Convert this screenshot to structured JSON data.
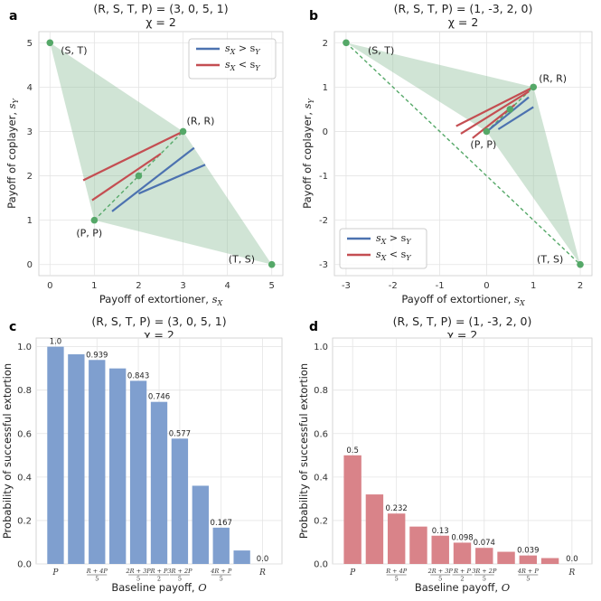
{
  "chart_data": [
    {
      "panel": "a",
      "type": "line",
      "title_line1": "(R, S, T, P) = (3, 0, 5, 1)",
      "title_line2": "χ = 2",
      "xlabel": "Payoff of extortioner, s",
      "xlabel_sub": "X",
      "ylabel": "Payoff of coplayer, s",
      "ylabel_sub": "Y",
      "xlim": [
        -0.25,
        5.25
      ],
      "ylim": [
        -0.25,
        5.25
      ],
      "xticks": [
        0,
        1,
        2,
        3,
        4,
        5
      ],
      "yticks": [
        0,
        1,
        2,
        3,
        4,
        5
      ],
      "feasible_region": [
        [
          0,
          5
        ],
        [
          3,
          3
        ],
        [
          5,
          0
        ],
        [
          1,
          1
        ]
      ],
      "points": [
        {
          "label": "(S, T)",
          "x": 0,
          "y": 5
        },
        {
          "label": "(R, R)",
          "x": 3,
          "y": 3
        },
        {
          "label": "(P, P)",
          "x": 1,
          "y": 1
        },
        {
          "label": "(T, S)",
          "x": 5,
          "y": 0
        },
        {
          "label": "",
          "x": 2,
          "y": 2
        }
      ],
      "diagonal": [
        [
          1,
          1
        ],
        [
          3,
          3
        ]
      ],
      "series": [
        {
          "name": "s_X > s_Y",
          "legend_main": "s",
          "legend_a": "X",
          "legend_op": " > s",
          "legend_b": "Y",
          "color": "#4c72b0",
          "segments": [
            [
              [
                1.4,
                1.2
              ],
              [
                3.25,
                2.63
              ]
            ],
            [
              [
                2.0,
                1.6
              ],
              [
                3.5,
                2.25
              ]
            ]
          ]
        },
        {
          "name": "s_X < s_Y",
          "legend_main": "s",
          "legend_a": "X",
          "legend_op": " < s",
          "legend_b": "Y",
          "color": "#c44e52",
          "segments": [
            [
              [
                0.75,
                1.9
              ],
              [
                3.0,
                3.0
              ]
            ],
            [
              [
                0.95,
                1.45
              ],
              [
                2.5,
                2.5
              ]
            ]
          ]
        }
      ],
      "legend_position": "top-right"
    },
    {
      "panel": "b",
      "type": "line",
      "title_line1": "(R, S, T, P) = (1, -3, 2, 0)",
      "title_line2": "χ = 2",
      "xlabel": "Payoff of extortioner, s",
      "xlabel_sub": "X",
      "ylabel": "Payoff of coplayer, s",
      "ylabel_sub": "Y",
      "xlim": [
        -3.25,
        2.25
      ],
      "ylim": [
        -3.25,
        2.25
      ],
      "xticks": [
        -3,
        -2,
        -1,
        0,
        1,
        2
      ],
      "yticks": [
        -3,
        -2,
        -1,
        0,
        1,
        2
      ],
      "feasible_region": [
        [
          -3,
          2
        ],
        [
          1,
          1
        ],
        [
          2,
          -3
        ],
        [
          0,
          0
        ]
      ],
      "points": [
        {
          "label": "(S, T)",
          "x": -3,
          "y": 2
        },
        {
          "label": "(R, R)",
          "x": 1,
          "y": 1
        },
        {
          "label": "(P, P)",
          "x": 0,
          "y": 0
        },
        {
          "label": "(T, S)",
          "x": 2,
          "y": -3
        },
        {
          "label": "",
          "x": 0.5,
          "y": 0.5
        }
      ],
      "diagonal": [
        [
          0,
          0
        ],
        [
          1,
          1
        ]
      ],
      "dashed_line": [
        [
          -3,
          2
        ],
        [
          2,
          -3
        ]
      ],
      "series": [
        {
          "name": "s_X > s_Y",
          "legend_main": "s",
          "legend_a": "X",
          "legend_op": " > s",
          "legend_b": "Y",
          "color": "#4c72b0",
          "segments": [
            [
              [
                -0.05,
                -0.05
              ],
              [
                0.9,
                0.77
              ]
            ],
            [
              [
                0.25,
                0.05
              ],
              [
                1.0,
                0.55
              ]
            ]
          ]
        },
        {
          "name": "s_X < s_Y",
          "legend_main": "s",
          "legend_a": "X",
          "legend_op": " < s",
          "legend_b": "Y",
          "color": "#c44e52",
          "segments": [
            [
              [
                -0.65,
                0.12
              ],
              [
                1.0,
                1.0
              ]
            ],
            [
              [
                -0.55,
                -0.05
              ],
              [
                0.9,
                0.9
              ]
            ],
            [
              [
                -0.3,
                -0.15
              ],
              [
                0.6,
                0.6
              ]
            ]
          ]
        }
      ],
      "legend_position": "bottom-left"
    },
    {
      "panel": "c",
      "type": "bar",
      "title_line1": "(R, S, T, P) = (3, 0, 5, 1)",
      "title_line2": "χ = 2",
      "xlabel": "Baseline payoff, O",
      "ylabel": "Probability of successful extortion",
      "ylim": [
        0,
        1.04
      ],
      "yticks": [
        0.0,
        0.2,
        0.4,
        0.6,
        0.8,
        1.0
      ],
      "color": "#7f9fcf",
      "values": [
        1.0,
        0.965,
        0.939,
        0.9,
        0.843,
        0.746,
        0.577,
        0.36,
        0.167,
        0.062,
        0.0
      ],
      "value_labels": [
        "1.0",
        "",
        "0.939",
        "",
        "0.843",
        "0.746",
        "0.577",
        "",
        "0.167",
        "",
        "0.0"
      ]
    },
    {
      "panel": "d",
      "type": "bar",
      "title_line1": "(R, S, T, P) = (1, -3, 2, 0)",
      "title_line2": "χ = 2",
      "xlabel": "Baseline payoff, O",
      "ylabel": "Probability of successful extortion",
      "ylim": [
        0,
        1.04
      ],
      "yticks": [
        0.0,
        0.2,
        0.4,
        0.6,
        0.8,
        1.0
      ],
      "color": "#d98389",
      "values": [
        0.5,
        0.32,
        0.232,
        0.172,
        0.13,
        0.098,
        0.074,
        0.056,
        0.039,
        0.027,
        0.0
      ],
      "value_labels": [
        "0.5",
        "",
        "0.232",
        "",
        "0.13",
        "0.098",
        "0.074",
        "",
        "0.039",
        "",
        "0.0"
      ]
    }
  ],
  "bar_xticks": [
    {
      "index": 0,
      "kind": "ital",
      "text": "P"
    },
    {
      "index": 2,
      "kind": "frac",
      "num": "R + 4P",
      "den": "5"
    },
    {
      "index": 4,
      "kind": "frac",
      "num": "2R + 3P",
      "den": "5"
    },
    {
      "index": 5,
      "kind": "frac",
      "num": "R + P",
      "den": "2"
    },
    {
      "index": 6,
      "kind": "frac",
      "num": "3R + 2P",
      "den": "5"
    },
    {
      "index": 8,
      "kind": "frac",
      "num": "4R + P",
      "den": "5"
    },
    {
      "index": 10,
      "kind": "ital",
      "text": "R"
    }
  ]
}
